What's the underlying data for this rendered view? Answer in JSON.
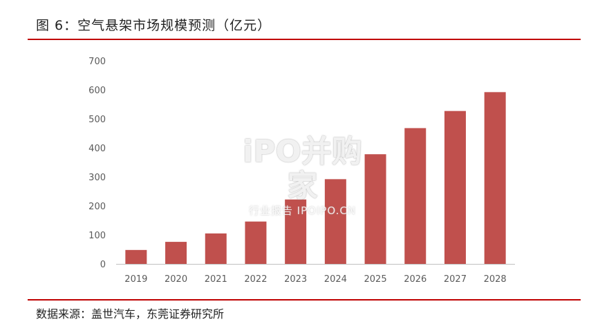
{
  "figure": {
    "title": "图 6：空气悬架市场规模预测（亿元）",
    "source": "数据来源：盖世汽车，东莞证券研究所"
  },
  "watermark": {
    "main": "iPO并购家",
    "sub": "行业报告 IPOIPO.CN"
  },
  "colors": {
    "bar": "#c0504d",
    "accent_rule": "#c00000",
    "axis": "#bfbfbf",
    "tick_text": "#595959"
  },
  "chart_data": {
    "type": "bar",
    "title": "",
    "xlabel": "",
    "ylabel": "",
    "categories": [
      "2019",
      "2020",
      "2021",
      "2022",
      "2023",
      "2024",
      "2025",
      "2026",
      "2027",
      "2028"
    ],
    "series": [
      {
        "values": [
          48,
          76,
          105,
          146,
          222,
          292,
          378,
          468,
          527,
          592
        ]
      }
    ],
    "ylim": [
      0,
      700
    ],
    "yticks": [
      0,
      100,
      200,
      300,
      400,
      500,
      600,
      700
    ],
    "grid": false,
    "legend": "none"
  }
}
